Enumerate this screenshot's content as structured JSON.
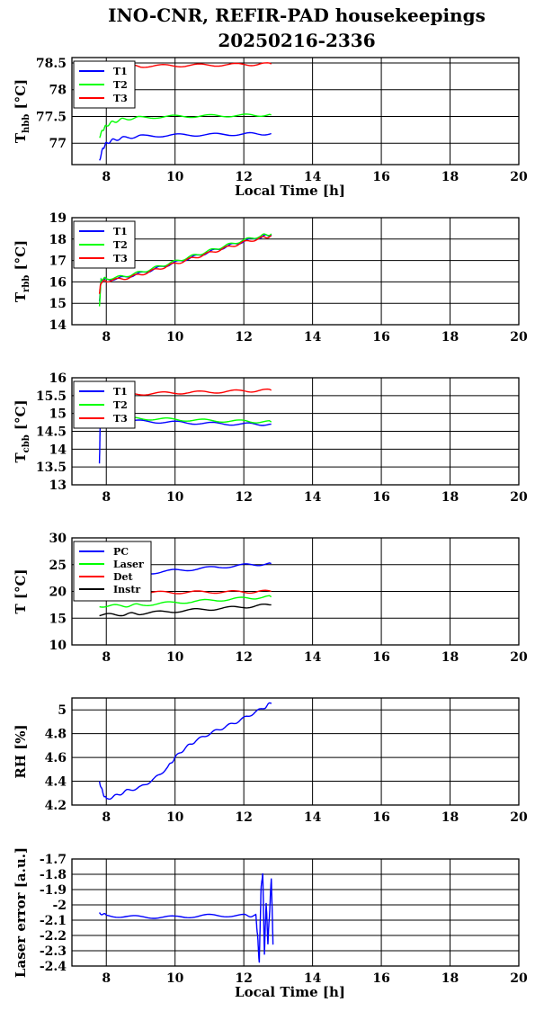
{
  "title": {
    "line1": "INO-CNR, REFIR-PAD housekeepings",
    "line2": "20250216-2336"
  },
  "colors": {
    "T1": "#0000ff",
    "T2": "#00ff00",
    "T3": "#ff0000",
    "PC": "#0000ff",
    "Laser": "#00ff00",
    "Det": "#ff0000",
    "Instr": "#000000"
  },
  "chart_data": [
    {
      "type": "line",
      "ylabel": "T_hbb [°C]",
      "ylabel_main": "T",
      "ylabel_sub": "hbb",
      "ylabel_unit": " [°C]",
      "xlabel": "Local Time [h]",
      "xlim": [
        7,
        20
      ],
      "ylim": [
        76.6,
        78.6
      ],
      "xticks": [
        "8",
        "10",
        "12",
        "14",
        "16",
        "18",
        "20"
      ],
      "yticks": [
        "77",
        "77.5",
        "78",
        "78.5"
      ],
      "legend": "top-left",
      "series": [
        {
          "name": "T1",
          "x": [
            7.8,
            7.9,
            8.0,
            8.2,
            8.5,
            9.0,
            10.0,
            11.0,
            12.0,
            12.8
          ],
          "y": [
            76.68,
            76.9,
            77.0,
            77.06,
            77.1,
            77.13,
            77.15,
            77.16,
            77.17,
            77.18
          ]
        },
        {
          "name": "T2",
          "x": [
            7.8,
            7.9,
            8.0,
            8.2,
            8.5,
            9.0,
            10.0,
            11.0,
            12.0,
            12.8
          ],
          "y": [
            77.12,
            77.25,
            77.33,
            77.4,
            77.45,
            77.48,
            77.5,
            77.51,
            77.52,
            77.53
          ]
        },
        {
          "name": "T3",
          "x": [
            7.8,
            8.5,
            9.0,
            10.0,
            11.0,
            12.0,
            12.8
          ],
          "y": [
            78.5,
            78.43,
            78.44,
            78.45,
            78.46,
            78.47,
            78.48
          ]
        }
      ]
    },
    {
      "type": "line",
      "ylabel": "T_rbb [°C]",
      "ylabel_main": "T",
      "ylabel_sub": "rbb",
      "ylabel_unit": " [°C]",
      "xlabel": "",
      "xlim": [
        7,
        20
      ],
      "ylim": [
        14,
        19
      ],
      "xticks": [
        "8",
        "10",
        "12",
        "14",
        "16",
        "18",
        "20"
      ],
      "yticks": [
        "14",
        "15",
        "16",
        "17",
        "18",
        "19"
      ],
      "legend": "top-left",
      "series": [
        {
          "name": "T1",
          "x": [
            7.8,
            7.85,
            8.0,
            8.5,
            9.0,
            9.5,
            10.0,
            10.5,
            11.0,
            11.5,
            12.0,
            12.5,
            12.8
          ],
          "y": [
            15.1,
            16.1,
            16.1,
            16.2,
            16.4,
            16.65,
            16.9,
            17.15,
            17.4,
            17.65,
            17.9,
            18.1,
            18.2
          ]
        },
        {
          "name": "T2",
          "x": [
            7.8,
            7.85,
            8.0,
            8.5,
            9.0,
            9.5,
            10.0,
            10.5,
            11.0,
            11.5,
            12.0,
            12.5,
            12.8
          ],
          "y": [
            14.9,
            16.15,
            16.15,
            16.25,
            16.45,
            16.7,
            16.95,
            17.2,
            17.45,
            17.7,
            17.95,
            18.15,
            18.25
          ]
        },
        {
          "name": "T3",
          "x": [
            7.8,
            7.85,
            8.0,
            8.5,
            9.0,
            9.5,
            10.0,
            10.5,
            11.0,
            11.5,
            12.0,
            12.5,
            12.8
          ],
          "y": [
            15.5,
            16.0,
            16.05,
            16.15,
            16.35,
            16.6,
            16.85,
            17.1,
            17.35,
            17.6,
            17.85,
            18.05,
            18.15
          ]
        }
      ]
    },
    {
      "type": "line",
      "ylabel": "T_cbb [°C]",
      "ylabel_main": "T",
      "ylabel_sub": "cbb",
      "ylabel_unit": " [°C]",
      "xlabel": "",
      "xlim": [
        7,
        20
      ],
      "ylim": [
        13,
        16
      ],
      "xticks": [
        "8",
        "10",
        "12",
        "14",
        "16",
        "18",
        "20"
      ],
      "yticks": [
        "13",
        "13.5",
        "14",
        "14.5",
        "15",
        "15.5",
        "16"
      ],
      "legend": "top-left",
      "series": [
        {
          "name": "T1",
          "x": [
            7.8,
            7.82,
            7.85,
            8.0,
            9.0,
            10.0,
            11.0,
            12.0,
            12.8
          ],
          "y": [
            13.6,
            14.6,
            14.8,
            14.8,
            14.78,
            14.75,
            14.72,
            14.7,
            14.7
          ]
        },
        {
          "name": "T2",
          "x": [
            7.8,
            8.0,
            9.0,
            10.0,
            11.0,
            12.0,
            12.8
          ],
          "y": [
            14.85,
            14.87,
            14.86,
            14.83,
            14.8,
            14.78,
            14.76
          ]
        },
        {
          "name": "T3",
          "x": [
            7.8,
            8.0,
            9.0,
            10.0,
            11.0,
            12.0,
            12.8
          ],
          "y": [
            15.5,
            15.52,
            15.55,
            15.58,
            15.6,
            15.63,
            15.65
          ]
        }
      ]
    },
    {
      "type": "line",
      "ylabel": "T [°C]",
      "xlabel": "",
      "xlim": [
        7,
        20
      ],
      "ylim": [
        10,
        30
      ],
      "xticks": [
        "8",
        "10",
        "12",
        "14",
        "16",
        "18",
        "20"
      ],
      "yticks": [
        "10",
        "15",
        "20",
        "25",
        "30"
      ],
      "legend": "top-left",
      "series": [
        {
          "name": "PC",
          "x": [
            7.8,
            8.5,
            9.0,
            10.0,
            11.0,
            12.0,
            12.8
          ],
          "y": [
            22.8,
            23.0,
            23.3,
            23.9,
            24.4,
            24.9,
            25.2
          ]
        },
        {
          "name": "Laser",
          "x": [
            7.8,
            8.5,
            9.0,
            10.0,
            11.0,
            12.0,
            12.8
          ],
          "y": [
            17.3,
            17.3,
            17.5,
            17.9,
            18.3,
            18.7,
            19.0
          ]
        },
        {
          "name": "Det",
          "x": [
            7.8,
            9.0,
            10.0,
            11.0,
            12.0,
            12.8
          ],
          "y": [
            19.7,
            19.8,
            19.8,
            19.9,
            19.9,
            20.0
          ]
        },
        {
          "name": "Instr",
          "x": [
            7.8,
            8.5,
            9.0,
            10.0,
            11.0,
            12.0,
            12.8
          ],
          "y": [
            15.6,
            15.7,
            15.9,
            16.3,
            16.7,
            17.1,
            17.5
          ]
        }
      ]
    },
    {
      "type": "line",
      "ylabel": "RH [%]",
      "xlabel": "",
      "xlim": [
        7,
        20
      ],
      "ylim": [
        4.2,
        5.1
      ],
      "xticks": [
        "8",
        "10",
        "12",
        "14",
        "16",
        "18",
        "20"
      ],
      "yticks": [
        "4.2",
        "4.4",
        "4.6",
        "4.8",
        "5"
      ],
      "legend": "none",
      "series": [
        {
          "name": "",
          "x": [
            7.8,
            7.9,
            8.0,
            8.3,
            8.6,
            9.0,
            9.4,
            9.8,
            10.0,
            10.3,
            10.6,
            11.0,
            11.4,
            11.8,
            12.2,
            12.6,
            12.8
          ],
          "y": [
            4.4,
            4.3,
            4.25,
            4.28,
            4.32,
            4.35,
            4.42,
            4.52,
            4.6,
            4.68,
            4.74,
            4.8,
            4.85,
            4.9,
            4.96,
            5.02,
            5.06
          ]
        }
      ]
    },
    {
      "type": "line",
      "ylabel": "Laser error [a.u.]",
      "xlabel": "Local Time [h]",
      "xlim": [
        7,
        20
      ],
      "ylim": [
        -2.4,
        -1.7
      ],
      "xticks": [
        "8",
        "10",
        "12",
        "14",
        "16",
        "18",
        "20"
      ],
      "yticks": [
        "-1.7",
        "-1.8",
        "-1.9",
        "-2",
        "-2.1",
        "-2.2",
        "-2.3",
        "-2.4"
      ],
      "legend": "none",
      "series": [
        {
          "name": "",
          "x": [
            7.8,
            8.0,
            9.0,
            10.0,
            11.0,
            12.0,
            12.35,
            12.4,
            12.45,
            12.5,
            12.55,
            12.6,
            12.65,
            12.7,
            12.75,
            12.8,
            12.85
          ],
          "y": [
            -2.05,
            -2.07,
            -2.08,
            -2.08,
            -2.07,
            -2.07,
            -2.07,
            -2.2,
            -2.38,
            -1.9,
            -1.79,
            -2.32,
            -1.98,
            -2.25,
            -2.05,
            -1.82,
            -2.26
          ]
        }
      ]
    }
  ]
}
